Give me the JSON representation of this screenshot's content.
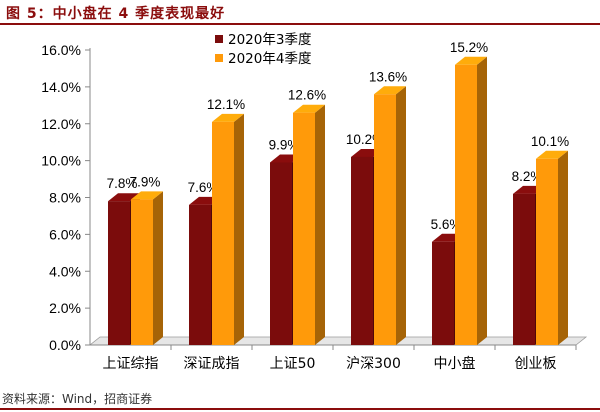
{
  "figure_title": "图 5：中小盘在 4 季度表现最好",
  "source": "资料来源：Wind，招商证券",
  "colors": {
    "title_color": "#8B0D0D",
    "series1": "#7B0C0C",
    "series2": "#FF9A0A"
  },
  "chart_data": {
    "type": "bar",
    "title": "",
    "xlabel": "",
    "ylabel": "",
    "ylim": [
      0,
      16
    ],
    "y_ticks": [
      "0.0%",
      "2.0%",
      "4.0%",
      "6.0%",
      "8.0%",
      "10.0%",
      "12.0%",
      "14.0%",
      "16.0%"
    ],
    "categories": [
      "上证综指",
      "深证成指",
      "上证50",
      "沪深300",
      "中小盘",
      "创业板"
    ],
    "series": [
      {
        "name": "2020年3季度",
        "values": [
          7.8,
          7.6,
          9.9,
          10.2,
          5.6,
          8.2
        ],
        "labels": [
          "7.8%",
          "7.6%",
          "9.9%",
          "10.2%",
          "5.6%",
          "8.2%"
        ]
      },
      {
        "name": "2020年4季度",
        "values": [
          7.9,
          12.1,
          12.6,
          13.6,
          15.2,
          10.1
        ],
        "labels": [
          "7.9%",
          "12.1%",
          "12.6%",
          "13.6%",
          "15.2%",
          "10.1%"
        ]
      }
    ],
    "legend_position": "top-left",
    "grid": false,
    "style": "3d-clustered"
  }
}
